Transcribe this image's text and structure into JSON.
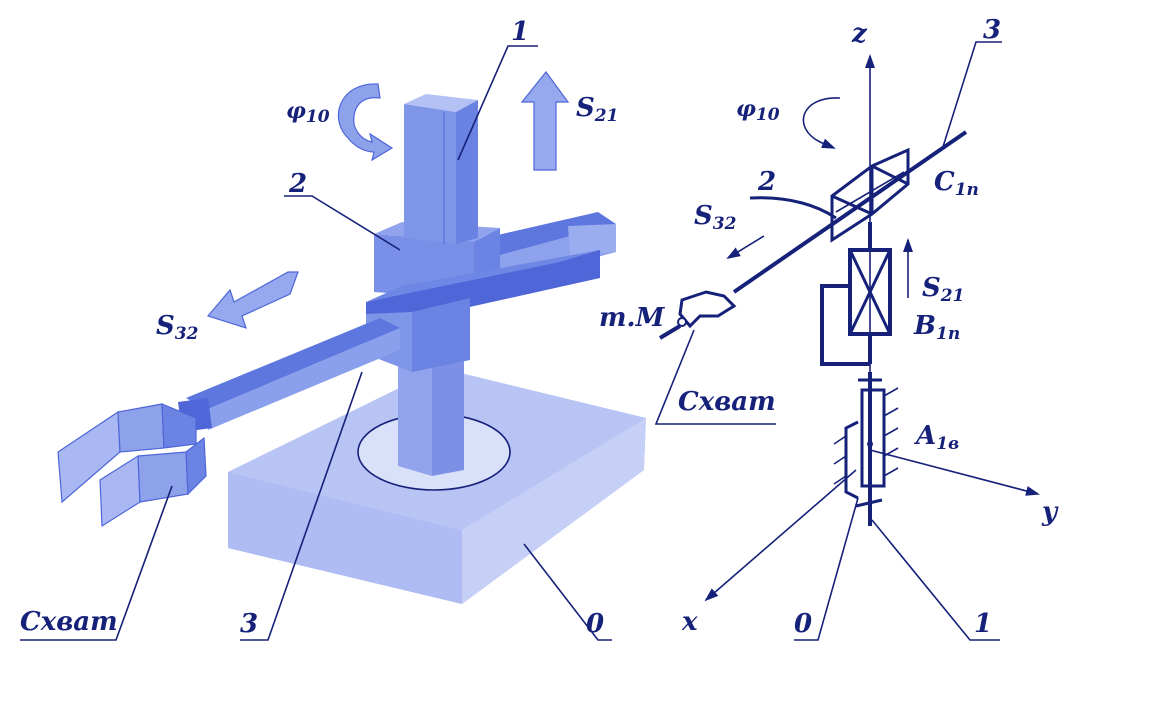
{
  "left_figure": {
    "labels": {
      "link_1": "1",
      "link_2": "2",
      "link_3": "3",
      "link_0": "0",
      "gripper": "Схват",
      "rotation": {
        "base": "φ",
        "sub": "10"
      },
      "vertical_motion": {
        "base": "S",
        "sub": "21"
      },
      "arm_motion": {
        "base": "S",
        "sub": "32"
      }
    }
  },
  "right_figure": {
    "labels": {
      "axis_z": "z",
      "axis_x": "x",
      "axis_y": "y",
      "link_3": "3",
      "link_2": "2",
      "link_1": "1",
      "link_0": "0",
      "rotation": {
        "base": "φ",
        "sub": "10"
      },
      "arm_motion": {
        "base": "S",
        "sub": "32"
      },
      "vertical_motion": {
        "base": "S",
        "sub": "21"
      },
      "joint_C": {
        "base": "C",
        "sub": "1п"
      },
      "joint_B": {
        "base": "B",
        "sub": "1п"
      },
      "joint_A": {
        "base": "A",
        "sub": "1в"
      },
      "point_M": "т.М",
      "gripper": "Схват"
    }
  },
  "colors": {
    "ink": "#16217a",
    "body_dark": "#4e66d8",
    "body_mid": "#7a90e8",
    "body_light": "#a9b7f2",
    "body_pale": "#c9d2f7"
  }
}
